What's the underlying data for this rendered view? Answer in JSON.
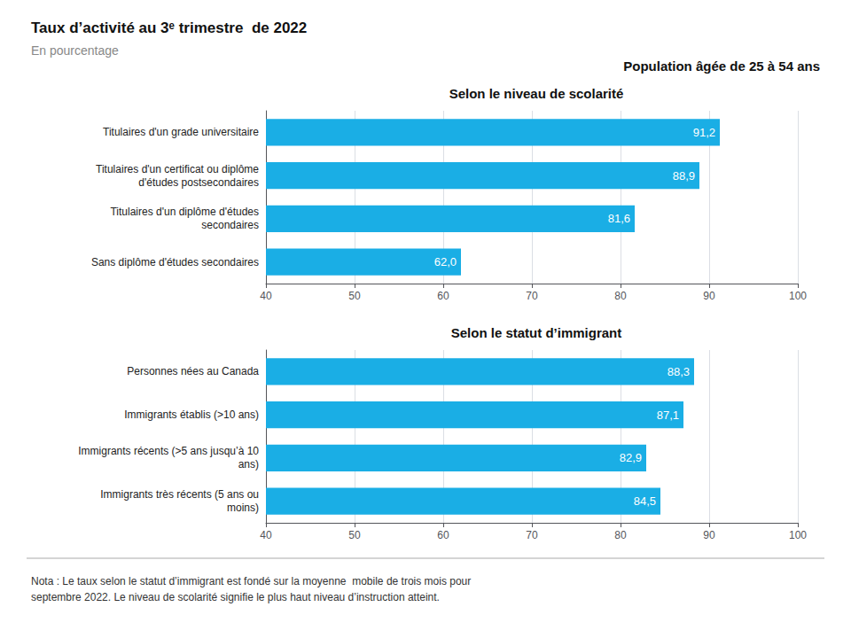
{
  "title": "Taux d’activité au 3ᵉ trimestre  de 2022",
  "subtitle": "En pourcentage",
  "annotations": [
    "Population âgée de 25 à 54 ans",
    "Nota : Le taux selon le statut d’immigrant est fondé sur la moyenne  mobile de trois mois pour\nseptembre 2022. Le niveau de scolarité signifie le plus haut niveau d’instruction atteint."
  ],
  "chart_data": [
    {
      "type": "bar",
      "orientation": "horizontal",
      "title": "Selon le niveau de scolarité",
      "categories": [
        "Titulaires d'un grade universitaire",
        "Titulaires d'un certificat ou diplôme\nd'études postsecondaires",
        "Titulaires d'un diplôme d'études\nsecondaires",
        "Sans diplôme d'études secondaires"
      ],
      "values": [
        91.2,
        88.9,
        81.6,
        62.0
      ],
      "value_labels": [
        "91,2",
        "88,9",
        "81,6",
        "62,0"
      ],
      "data_labels": true,
      "color": "#1aaee5",
      "xlim": [
        40,
        100
      ],
      "xticks": [
        40,
        50,
        60,
        70,
        80,
        90,
        100
      ],
      "grid": true
    },
    {
      "type": "bar",
      "orientation": "horizontal",
      "title": "Selon le statut d’immigrant",
      "categories": [
        "Personnes nées au Canada",
        "Immigrants établis (>10 ans)",
        "Immigrants récents (>5 ans jusqu’à 10\nans)",
        "Immigrants très récents (5 ans ou\nmoins)"
      ],
      "values": [
        88.3,
        87.1,
        82.9,
        84.5
      ],
      "value_labels": [
        "88,3",
        "87,1",
        "82,9",
        "84,5"
      ],
      "data_labels": true,
      "color": "#1aaee5",
      "xlim": [
        40,
        100
      ],
      "xticks": [
        40,
        50,
        60,
        70,
        80,
        90,
        100
      ],
      "grid": true
    }
  ]
}
